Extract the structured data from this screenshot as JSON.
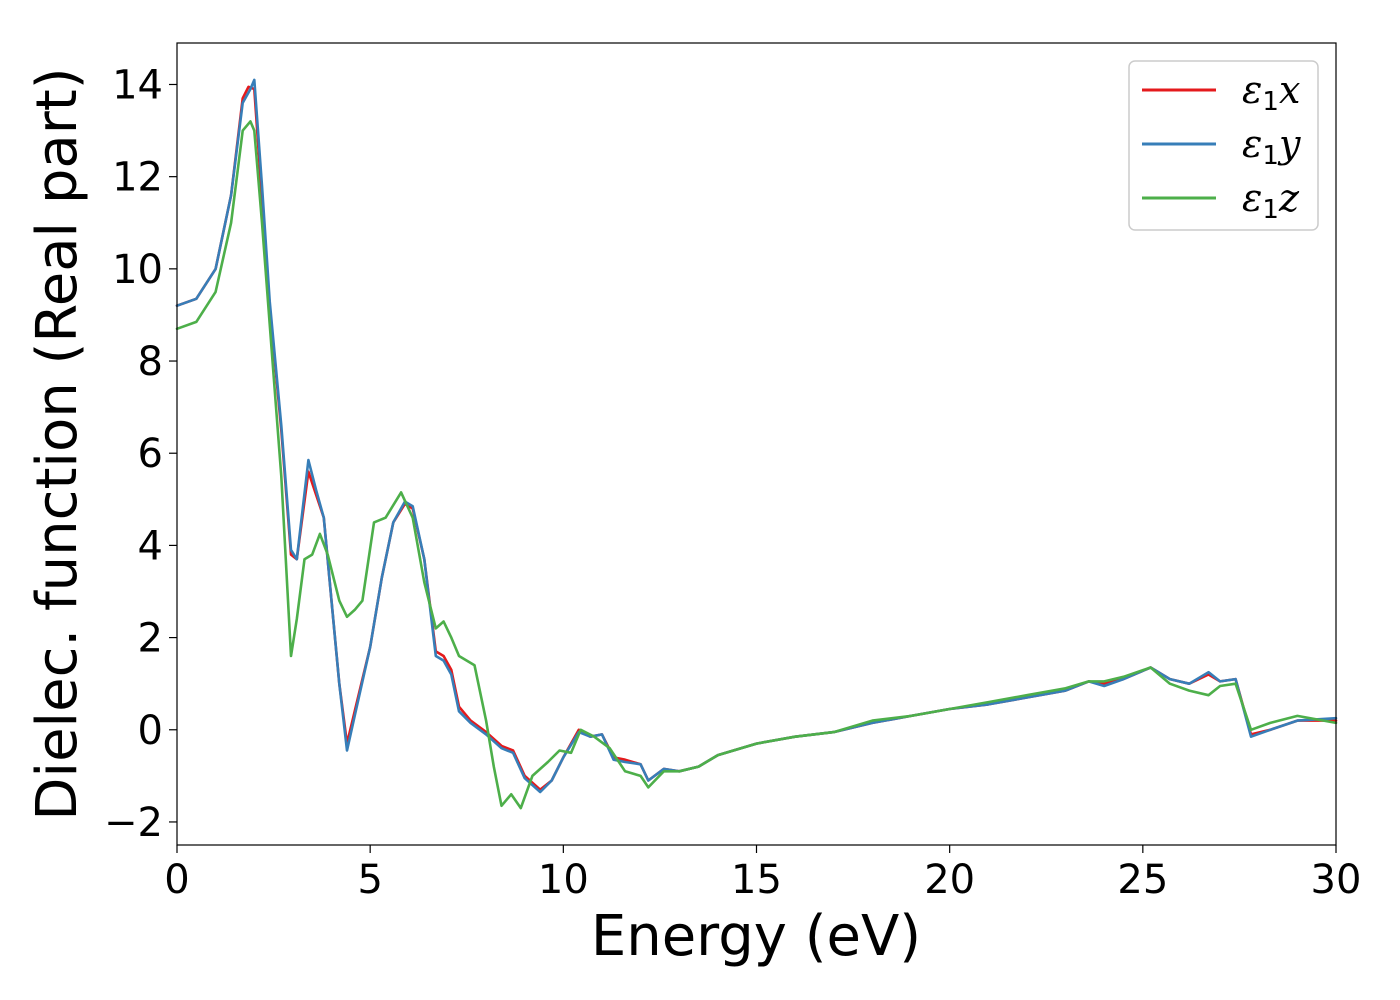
{
  "chart_data": {
    "type": "line",
    "xlabel": "Energy (eV)",
    "ylabel": "Dielec. function (Real part)",
    "xlim": [
      0,
      30
    ],
    "ylim": [
      -2.5,
      14.9
    ],
    "xticks": [
      0,
      5,
      10,
      15,
      20,
      25,
      30
    ],
    "xtick_labels": [
      "0",
      "5",
      "10",
      "15",
      "20",
      "25",
      "30"
    ],
    "yticks": [
      -2,
      0,
      2,
      4,
      6,
      8,
      10,
      12,
      14
    ],
    "ytick_labels": [
      "−2",
      "0",
      "2",
      "4",
      "6",
      "8",
      "10",
      "12",
      "14"
    ],
    "grid": false,
    "legend_position": "top-right",
    "series": [
      {
        "name": "ε1x",
        "legend_main": "ε",
        "legend_sub": "1",
        "legend_var": "x",
        "color": "#e41a1c",
        "points": [
          [
            0,
            9.2
          ],
          [
            0.5,
            9.35
          ],
          [
            1.0,
            10.0
          ],
          [
            1.4,
            11.6
          ],
          [
            1.7,
            13.7
          ],
          [
            1.85,
            13.95
          ],
          [
            2.0,
            13.9
          ],
          [
            2.2,
            11.5
          ],
          [
            2.4,
            9.2
          ],
          [
            2.7,
            6.5
          ],
          [
            2.95,
            3.8
          ],
          [
            3.1,
            3.7
          ],
          [
            3.4,
            5.6
          ],
          [
            3.6,
            5.1
          ],
          [
            3.8,
            4.6
          ],
          [
            4.0,
            2.8
          ],
          [
            4.2,
            1.0
          ],
          [
            4.4,
            -0.3
          ],
          [
            4.6,
            0.4
          ],
          [
            5.0,
            1.8
          ],
          [
            5.3,
            3.3
          ],
          [
            5.6,
            4.5
          ],
          [
            5.9,
            4.9
          ],
          [
            6.1,
            4.8
          ],
          [
            6.4,
            3.7
          ],
          [
            6.7,
            1.7
          ],
          [
            6.9,
            1.6
          ],
          [
            7.1,
            1.3
          ],
          [
            7.3,
            0.5
          ],
          [
            7.6,
            0.2
          ],
          [
            8.0,
            -0.05
          ],
          [
            8.4,
            -0.35
          ],
          [
            8.7,
            -0.45
          ],
          [
            9.0,
            -1.0
          ],
          [
            9.4,
            -1.3
          ],
          [
            9.7,
            -1.1
          ],
          [
            10.0,
            -0.6
          ],
          [
            10.4,
            0.0
          ],
          [
            10.7,
            -0.15
          ],
          [
            11.0,
            -0.1
          ],
          [
            11.3,
            -0.6
          ],
          [
            11.6,
            -0.65
          ],
          [
            12.0,
            -0.75
          ],
          [
            12.2,
            -1.1
          ],
          [
            12.6,
            -0.85
          ],
          [
            13.0,
            -0.9
          ],
          [
            13.5,
            -0.8
          ],
          [
            14.0,
            -0.55
          ],
          [
            15.0,
            -0.3
          ],
          [
            16.0,
            -0.15
          ],
          [
            17.0,
            -0.05
          ],
          [
            18.0,
            0.15
          ],
          [
            19.0,
            0.3
          ],
          [
            20.0,
            0.45
          ],
          [
            21.0,
            0.55
          ],
          [
            22.0,
            0.7
          ],
          [
            23.0,
            0.85
          ],
          [
            23.6,
            1.05
          ],
          [
            24.0,
            1.0
          ],
          [
            24.5,
            1.1
          ],
          [
            25.2,
            1.35
          ],
          [
            25.7,
            1.1
          ],
          [
            26.2,
            1.0
          ],
          [
            26.7,
            1.2
          ],
          [
            27.0,
            1.05
          ],
          [
            27.4,
            1.1
          ],
          [
            27.8,
            -0.1
          ],
          [
            28.3,
            0.0
          ],
          [
            29.0,
            0.2
          ],
          [
            30.0,
            0.2
          ]
        ]
      },
      {
        "name": "ε1y",
        "legend_main": "ε",
        "legend_sub": "1",
        "legend_var": "y",
        "color": "#377eb8",
        "points": [
          [
            0,
            9.2
          ],
          [
            0.5,
            9.35
          ],
          [
            1.0,
            10.0
          ],
          [
            1.4,
            11.6
          ],
          [
            1.7,
            13.6
          ],
          [
            1.9,
            13.9
          ],
          [
            2.0,
            14.1
          ],
          [
            2.2,
            11.8
          ],
          [
            2.4,
            9.3
          ],
          [
            2.7,
            6.6
          ],
          [
            2.95,
            3.9
          ],
          [
            3.1,
            3.7
          ],
          [
            3.4,
            5.85
          ],
          [
            3.6,
            5.2
          ],
          [
            3.8,
            4.6
          ],
          [
            4.0,
            2.8
          ],
          [
            4.2,
            1.0
          ],
          [
            4.4,
            -0.45
          ],
          [
            4.6,
            0.3
          ],
          [
            5.0,
            1.8
          ],
          [
            5.3,
            3.3
          ],
          [
            5.6,
            4.5
          ],
          [
            5.9,
            4.95
          ],
          [
            6.1,
            4.85
          ],
          [
            6.4,
            3.7
          ],
          [
            6.7,
            1.6
          ],
          [
            6.9,
            1.5
          ],
          [
            7.1,
            1.2
          ],
          [
            7.3,
            0.4
          ],
          [
            7.6,
            0.15
          ],
          [
            8.0,
            -0.1
          ],
          [
            8.4,
            -0.4
          ],
          [
            8.7,
            -0.5
          ],
          [
            9.0,
            -1.05
          ],
          [
            9.4,
            -1.35
          ],
          [
            9.7,
            -1.1
          ],
          [
            10.0,
            -0.6
          ],
          [
            10.4,
            -0.05
          ],
          [
            10.7,
            -0.15
          ],
          [
            11.0,
            -0.1
          ],
          [
            11.3,
            -0.65
          ],
          [
            11.6,
            -0.7
          ],
          [
            12.0,
            -0.75
          ],
          [
            12.2,
            -1.1
          ],
          [
            12.6,
            -0.85
          ],
          [
            13.0,
            -0.9
          ],
          [
            13.5,
            -0.8
          ],
          [
            14.0,
            -0.55
          ],
          [
            15.0,
            -0.3
          ],
          [
            16.0,
            -0.15
          ],
          [
            17.0,
            -0.05
          ],
          [
            18.0,
            0.15
          ],
          [
            19.0,
            0.3
          ],
          [
            20.0,
            0.45
          ],
          [
            21.0,
            0.55
          ],
          [
            22.0,
            0.7
          ],
          [
            23.0,
            0.85
          ],
          [
            23.6,
            1.05
          ],
          [
            24.0,
            0.95
          ],
          [
            24.5,
            1.1
          ],
          [
            25.2,
            1.35
          ],
          [
            25.7,
            1.1
          ],
          [
            26.2,
            1.0
          ],
          [
            26.7,
            1.25
          ],
          [
            27.0,
            1.05
          ],
          [
            27.4,
            1.1
          ],
          [
            27.8,
            -0.15
          ],
          [
            28.3,
            0.0
          ],
          [
            29.0,
            0.2
          ],
          [
            30.0,
            0.25
          ]
        ]
      },
      {
        "name": "ε1z",
        "legend_main": "ε",
        "legend_sub": "1",
        "legend_var": "z",
        "color": "#4daf4a",
        "points": [
          [
            0,
            8.7
          ],
          [
            0.5,
            8.85
          ],
          [
            1.0,
            9.5
          ],
          [
            1.4,
            11.0
          ],
          [
            1.7,
            13.0
          ],
          [
            1.9,
            13.2
          ],
          [
            2.0,
            13.0
          ],
          [
            2.2,
            11.0
          ],
          [
            2.4,
            8.8
          ],
          [
            2.7,
            5.5
          ],
          [
            2.95,
            1.6
          ],
          [
            3.1,
            2.4
          ],
          [
            3.3,
            3.7
          ],
          [
            3.5,
            3.8
          ],
          [
            3.7,
            4.25
          ],
          [
            3.9,
            3.8
          ],
          [
            4.2,
            2.8
          ],
          [
            4.4,
            2.45
          ],
          [
            4.6,
            2.6
          ],
          [
            4.8,
            2.8
          ],
          [
            5.1,
            4.5
          ],
          [
            5.4,
            4.6
          ],
          [
            5.8,
            5.15
          ],
          [
            6.1,
            4.6
          ],
          [
            6.4,
            3.2
          ],
          [
            6.7,
            2.2
          ],
          [
            6.9,
            2.35
          ],
          [
            7.1,
            2.0
          ],
          [
            7.3,
            1.6
          ],
          [
            7.7,
            1.4
          ],
          [
            8.0,
            0.2
          ],
          [
            8.2,
            -0.8
          ],
          [
            8.4,
            -1.65
          ],
          [
            8.65,
            -1.4
          ],
          [
            8.9,
            -1.7
          ],
          [
            9.2,
            -1.0
          ],
          [
            9.6,
            -0.7
          ],
          [
            9.9,
            -0.45
          ],
          [
            10.2,
            -0.5
          ],
          [
            10.45,
            0.0
          ],
          [
            10.8,
            -0.15
          ],
          [
            11.2,
            -0.4
          ],
          [
            11.6,
            -0.9
          ],
          [
            12.0,
            -1.0
          ],
          [
            12.2,
            -1.25
          ],
          [
            12.6,
            -0.9
          ],
          [
            13.0,
            -0.9
          ],
          [
            13.5,
            -0.8
          ],
          [
            14.0,
            -0.55
          ],
          [
            15.0,
            -0.3
          ],
          [
            16.0,
            -0.15
          ],
          [
            17.0,
            -0.05
          ],
          [
            18.0,
            0.2
          ],
          [
            19.0,
            0.3
          ],
          [
            20.0,
            0.45
          ],
          [
            21.0,
            0.6
          ],
          [
            22.0,
            0.75
          ],
          [
            23.0,
            0.9
          ],
          [
            23.6,
            1.05
          ],
          [
            24.0,
            1.05
          ],
          [
            24.5,
            1.15
          ],
          [
            25.2,
            1.35
          ],
          [
            25.7,
            1.0
          ],
          [
            26.2,
            0.85
          ],
          [
            26.7,
            0.75
          ],
          [
            27.0,
            0.95
          ],
          [
            27.4,
            1.0
          ],
          [
            27.8,
            0.0
          ],
          [
            28.3,
            0.15
          ],
          [
            29.0,
            0.3
          ],
          [
            30.0,
            0.15
          ]
        ]
      }
    ]
  }
}
